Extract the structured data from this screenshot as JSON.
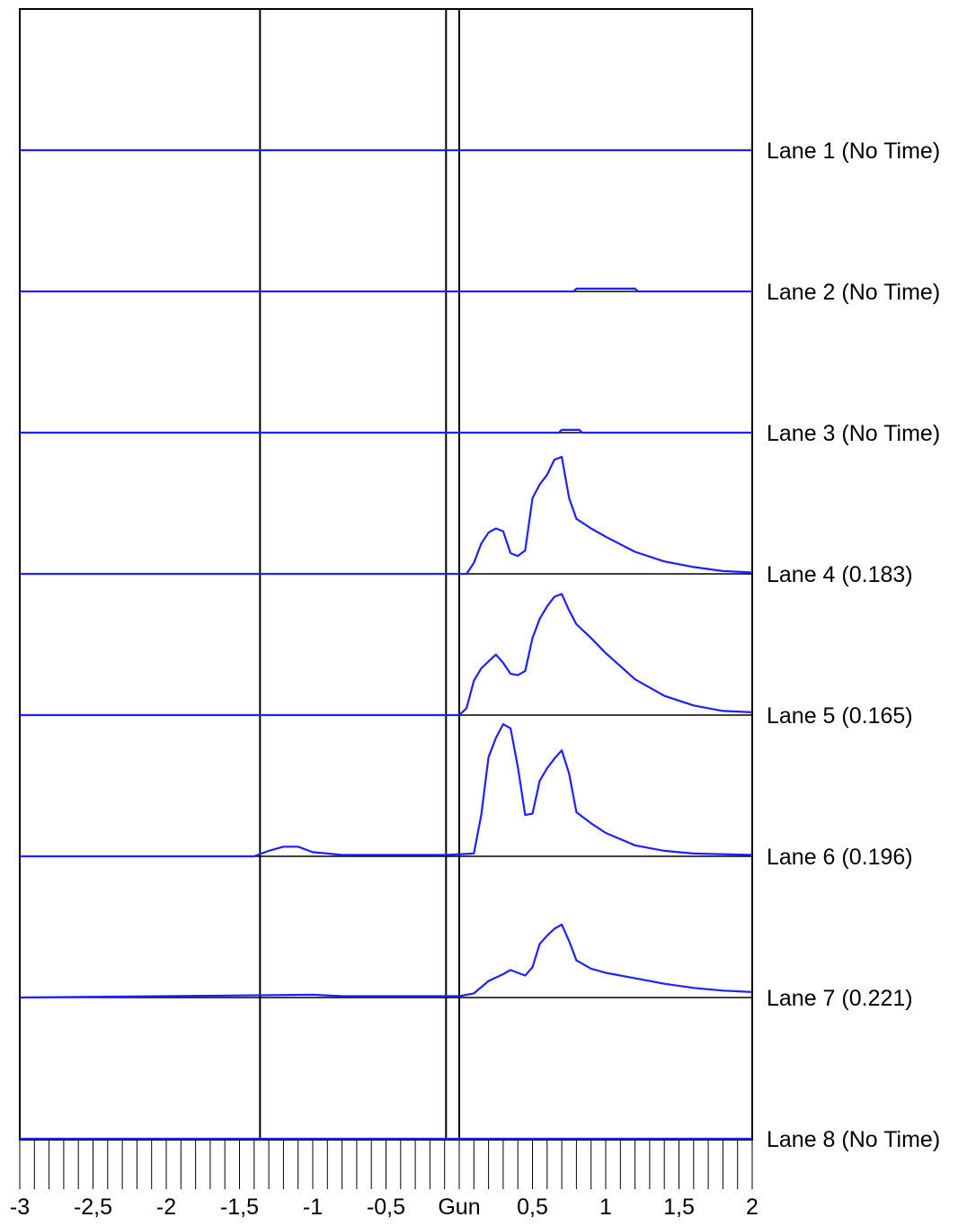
{
  "chart_data": {
    "type": "line",
    "title": "",
    "xlabel": "",
    "ylabel": "",
    "xlim": [
      -3,
      2
    ],
    "grid": false,
    "x_ticks": [
      -3,
      -2.5,
      -2,
      -1.5,
      -1,
      -0.5,
      0,
      0.5,
      1,
      1.5,
      2
    ],
    "x_tick_labels": [
      "-3",
      "-2,5",
      "-2",
      "-1,5",
      "-1",
      "-0,5",
      "Gun",
      "0,5",
      "1",
      "1,5",
      "2"
    ],
    "x_minor_tick_step": 0.1,
    "vertical_markers": [
      -1.36,
      -0.09,
      0
    ],
    "trace_color": "#1f1fff",
    "lanes": [
      {
        "name": "Lane 1 (No Time)",
        "points": [
          [
            -3,
            0
          ],
          [
            2,
            0
          ]
        ]
      },
      {
        "name": "Lane 2 (No Time)",
        "points": [
          [
            -3,
            0
          ],
          [
            0.78,
            0
          ],
          [
            0.8,
            0.02
          ],
          [
            1.2,
            0.02
          ],
          [
            1.22,
            0
          ],
          [
            2,
            0
          ]
        ]
      },
      {
        "name": "Lane 3 (No Time)",
        "points": [
          [
            -3,
            0
          ],
          [
            0.68,
            0
          ],
          [
            0.7,
            0.02
          ],
          [
            0.82,
            0.02
          ],
          [
            0.84,
            0
          ],
          [
            2,
            0
          ]
        ]
      },
      {
        "name": "Lane 4 (0.183)",
        "points": [
          [
            -3,
            0
          ],
          [
            0.05,
            0
          ],
          [
            0.1,
            0.08
          ],
          [
            0.15,
            0.22
          ],
          [
            0.2,
            0.3
          ],
          [
            0.25,
            0.33
          ],
          [
            0.3,
            0.31
          ],
          [
            0.35,
            0.15
          ],
          [
            0.4,
            0.13
          ],
          [
            0.45,
            0.17
          ],
          [
            0.5,
            0.55
          ],
          [
            0.55,
            0.65
          ],
          [
            0.6,
            0.72
          ],
          [
            0.65,
            0.83
          ],
          [
            0.7,
            0.85
          ],
          [
            0.75,
            0.55
          ],
          [
            0.8,
            0.4
          ],
          [
            0.9,
            0.33
          ],
          [
            1.0,
            0.27
          ],
          [
            1.2,
            0.16
          ],
          [
            1.4,
            0.09
          ],
          [
            1.6,
            0.05
          ],
          [
            1.8,
            0.02
          ],
          [
            2.0,
            0.01
          ]
        ]
      },
      {
        "name": "Lane 5 (0.165)",
        "points": [
          [
            -3,
            0
          ],
          [
            0.0,
            0
          ],
          [
            0.05,
            0.05
          ],
          [
            0.1,
            0.25
          ],
          [
            0.15,
            0.34
          ],
          [
            0.2,
            0.39
          ],
          [
            0.25,
            0.44
          ],
          [
            0.3,
            0.38
          ],
          [
            0.35,
            0.3
          ],
          [
            0.4,
            0.29
          ],
          [
            0.45,
            0.32
          ],
          [
            0.5,
            0.56
          ],
          [
            0.55,
            0.7
          ],
          [
            0.6,
            0.79
          ],
          [
            0.65,
            0.86
          ],
          [
            0.7,
            0.88
          ],
          [
            0.75,
            0.76
          ],
          [
            0.8,
            0.66
          ],
          [
            0.9,
            0.56
          ],
          [
            1.0,
            0.45
          ],
          [
            1.2,
            0.26
          ],
          [
            1.4,
            0.14
          ],
          [
            1.6,
            0.07
          ],
          [
            1.8,
            0.03
          ],
          [
            2.0,
            0.02
          ]
        ]
      },
      {
        "name": "Lane 6 (0.196)",
        "points": [
          [
            -3,
            0
          ],
          [
            -1.4,
            0
          ],
          [
            -1.3,
            0.04
          ],
          [
            -1.2,
            0.07
          ],
          [
            -1.1,
            0.07
          ],
          [
            -1.0,
            0.03
          ],
          [
            -0.9,
            0.02
          ],
          [
            -0.8,
            0.01
          ],
          [
            -0.7,
            0.01
          ],
          [
            -0.1,
            0.01
          ],
          [
            0.1,
            0.02
          ],
          [
            0.15,
            0.3
          ],
          [
            0.2,
            0.72
          ],
          [
            0.25,
            0.86
          ],
          [
            0.3,
            0.96
          ],
          [
            0.35,
            0.93
          ],
          [
            0.4,
            0.65
          ],
          [
            0.45,
            0.3
          ],
          [
            0.5,
            0.31
          ],
          [
            0.55,
            0.55
          ],
          [
            0.6,
            0.64
          ],
          [
            0.65,
            0.71
          ],
          [
            0.7,
            0.77
          ],
          [
            0.75,
            0.6
          ],
          [
            0.8,
            0.32
          ],
          [
            0.9,
            0.24
          ],
          [
            1.0,
            0.17
          ],
          [
            1.2,
            0.08
          ],
          [
            1.4,
            0.04
          ],
          [
            1.6,
            0.02
          ],
          [
            2.0,
            0.01
          ]
        ]
      },
      {
        "name": "Lane 7 (0.221)",
        "points": [
          [
            -3,
            0
          ],
          [
            -2,
            0.01
          ],
          [
            -1.0,
            0.02
          ],
          [
            -0.8,
            0.01
          ],
          [
            0.0,
            0.01
          ],
          [
            0.1,
            0.03
          ],
          [
            0.2,
            0.12
          ],
          [
            0.3,
            0.17
          ],
          [
            0.35,
            0.2
          ],
          [
            0.4,
            0.18
          ],
          [
            0.45,
            0.16
          ],
          [
            0.5,
            0.22
          ],
          [
            0.55,
            0.39
          ],
          [
            0.6,
            0.45
          ],
          [
            0.65,
            0.5
          ],
          [
            0.7,
            0.53
          ],
          [
            0.75,
            0.41
          ],
          [
            0.8,
            0.27
          ],
          [
            0.9,
            0.21
          ],
          [
            1.0,
            0.18
          ],
          [
            1.2,
            0.14
          ],
          [
            1.4,
            0.1
          ],
          [
            1.6,
            0.07
          ],
          [
            1.8,
            0.05
          ],
          [
            2.0,
            0.04
          ]
        ]
      },
      {
        "name": "Lane 8 (No Time)",
        "points": [
          [
            -3,
            0
          ],
          [
            2,
            0
          ]
        ]
      }
    ]
  }
}
